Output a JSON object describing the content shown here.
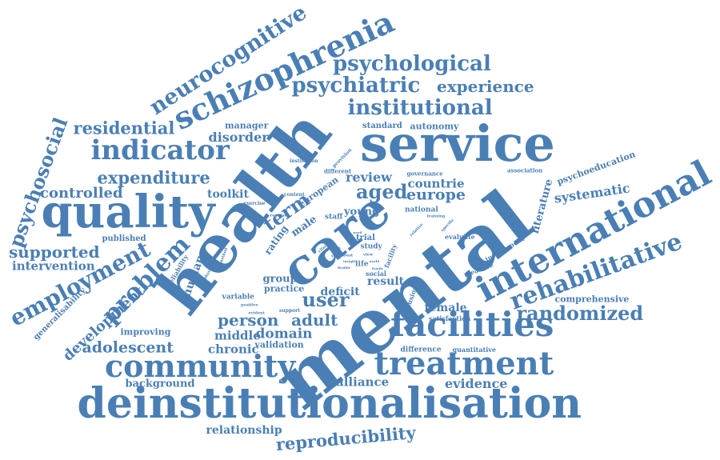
{
  "colors": {
    "word": "#4A7FB5",
    "background": "#FFFFFF"
  },
  "words": [
    "deinstitutionalisation",
    "mental",
    "health",
    "care",
    "service",
    "quality",
    "schizophrenia",
    "international",
    "facilities",
    "treatment",
    "community",
    "indicator",
    "rehabilitative",
    "neurocognitive",
    "psychological",
    "psychiatric",
    "institutional",
    "experience",
    "employment",
    "problem",
    "psychosocial",
    "residential",
    "expenditure",
    "controlled",
    "supported",
    "intervention",
    "development",
    "adolescent",
    "randomized",
    "user",
    "person",
    "adult",
    "domain",
    "chronic",
    "middle",
    "reproducibility",
    "relationship",
    "alliance",
    "evidence",
    "background",
    "female",
    "comprehensive",
    "systematic",
    "psychoeducation",
    "literature",
    "aged",
    "europe",
    "countrie",
    "review",
    "term",
    "disorder",
    "manager",
    "toolkit",
    "standard",
    "autonomy",
    "published",
    "generalisability",
    "improving",
    "validation",
    "group",
    "practice",
    "result",
    "deficit",
    "human",
    "young",
    "male",
    "rating",
    "european",
    "variable",
    "reliability",
    "staff",
    "trial",
    "study",
    "life",
    "social",
    "national",
    "facility",
    "measure",
    "involvement",
    "evaluate",
    "difference",
    "quantitative",
    "satisfaction",
    "seclusion",
    "association",
    "governance",
    "different",
    "institution",
    "provision",
    "content",
    "exercise",
    "regular",
    "training",
    "specific",
    "robust",
    "relative",
    "support",
    "physical",
    "positive",
    "evident",
    "method",
    "clinical",
    "view",
    "world",
    "family",
    "flexible",
    "patient",
    "insight",
    "need"
  ]
}
